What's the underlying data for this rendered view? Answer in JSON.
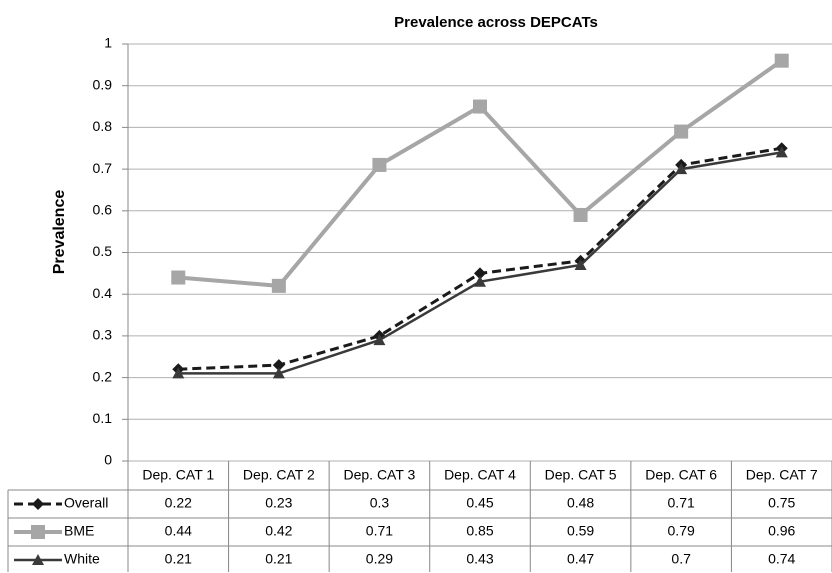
{
  "chart_data": {
    "type": "line",
    "title": "Prevalence across DEPCATs",
    "y_label": "Prevalence",
    "categories": [
      "Dep. CAT 1",
      "Dep. CAT 2",
      "Dep. CAT 3",
      "Dep. CAT 4",
      "Dep. CAT 5",
      "Dep. CAT 6",
      "Dep. CAT 7"
    ],
    "series": [
      {
        "name": "Overall",
        "color": "#1a1a1a",
        "line_style": "dashed",
        "marker": "diamond",
        "values": [
          0.22,
          0.23,
          0.3,
          0.45,
          0.48,
          0.71,
          0.75
        ]
      },
      {
        "name": "BME",
        "color": "#a6a6a6",
        "line_style": "solid",
        "marker": "square",
        "values": [
          0.44,
          0.42,
          0.71,
          0.85,
          0.59,
          0.79,
          0.96
        ]
      },
      {
        "name": "White",
        "color": "#3a3a3a",
        "line_style": "solid",
        "marker": "triangle",
        "values": [
          0.21,
          0.21,
          0.29,
          0.43,
          0.47,
          0.7,
          0.74
        ]
      }
    ],
    "ylim": [
      0,
      1
    ],
    "yticks": [
      0,
      0.1,
      0.2,
      0.3,
      0.4,
      0.5,
      0.6,
      0.7,
      0.8,
      0.9,
      1
    ],
    "grid": true,
    "data_table": true
  }
}
